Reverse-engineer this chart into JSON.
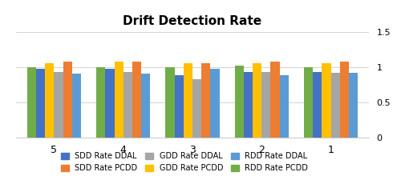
{
  "title": "Drift Detection Rate",
  "categories": [
    "5",
    "4",
    "3",
    "2",
    "1"
  ],
  "series_order": [
    "RDD Rate PCDD",
    "SDD Rate DDAL",
    "GDD Rate PCDD",
    "GDD Rate DDAL",
    "SDD Rate PCDD",
    "RDD Rate DDAL"
  ],
  "legend_order": [
    "SDD Rate DDAL",
    "SDD Rate PCDD",
    "GDD Rate DDAL",
    "GDD Rate PCDD",
    "RDD Rate DDAL",
    "RDD Rate PCDD"
  ],
  "values": {
    "SDD Rate DDAL": [
      0.97,
      0.97,
      0.88,
      0.93,
      0.93
    ],
    "SDD Rate PCDD": [
      1.08,
      1.08,
      1.05,
      1.08,
      1.08
    ],
    "GDD Rate DDAL": [
      0.93,
      0.93,
      0.83,
      0.93,
      0.92
    ],
    "GDD Rate PCDD": [
      1.05,
      1.07,
      1.05,
      1.05,
      1.05
    ],
    "RDD Rate DDAL": [
      0.9,
      0.91,
      0.97,
      0.88,
      0.92
    ],
    "RDD Rate PCDD": [
      1.0,
      1.0,
      1.0,
      1.02,
      1.0
    ]
  },
  "colors": {
    "SDD Rate DDAL": "#4472C4",
    "SDD Rate PCDD": "#ED7D31",
    "GDD Rate DDAL": "#A5A5A5",
    "GDD Rate PCDD": "#FFC000",
    "RDD Rate DDAL": "#5B9BD5",
    "RDD Rate PCDD": "#70AD47"
  },
  "ylim": [
    0,
    1.5
  ],
  "yticks": [
    0,
    0.5,
    1,
    1.5
  ],
  "bar_width": 0.13,
  "background_color": "#ffffff"
}
